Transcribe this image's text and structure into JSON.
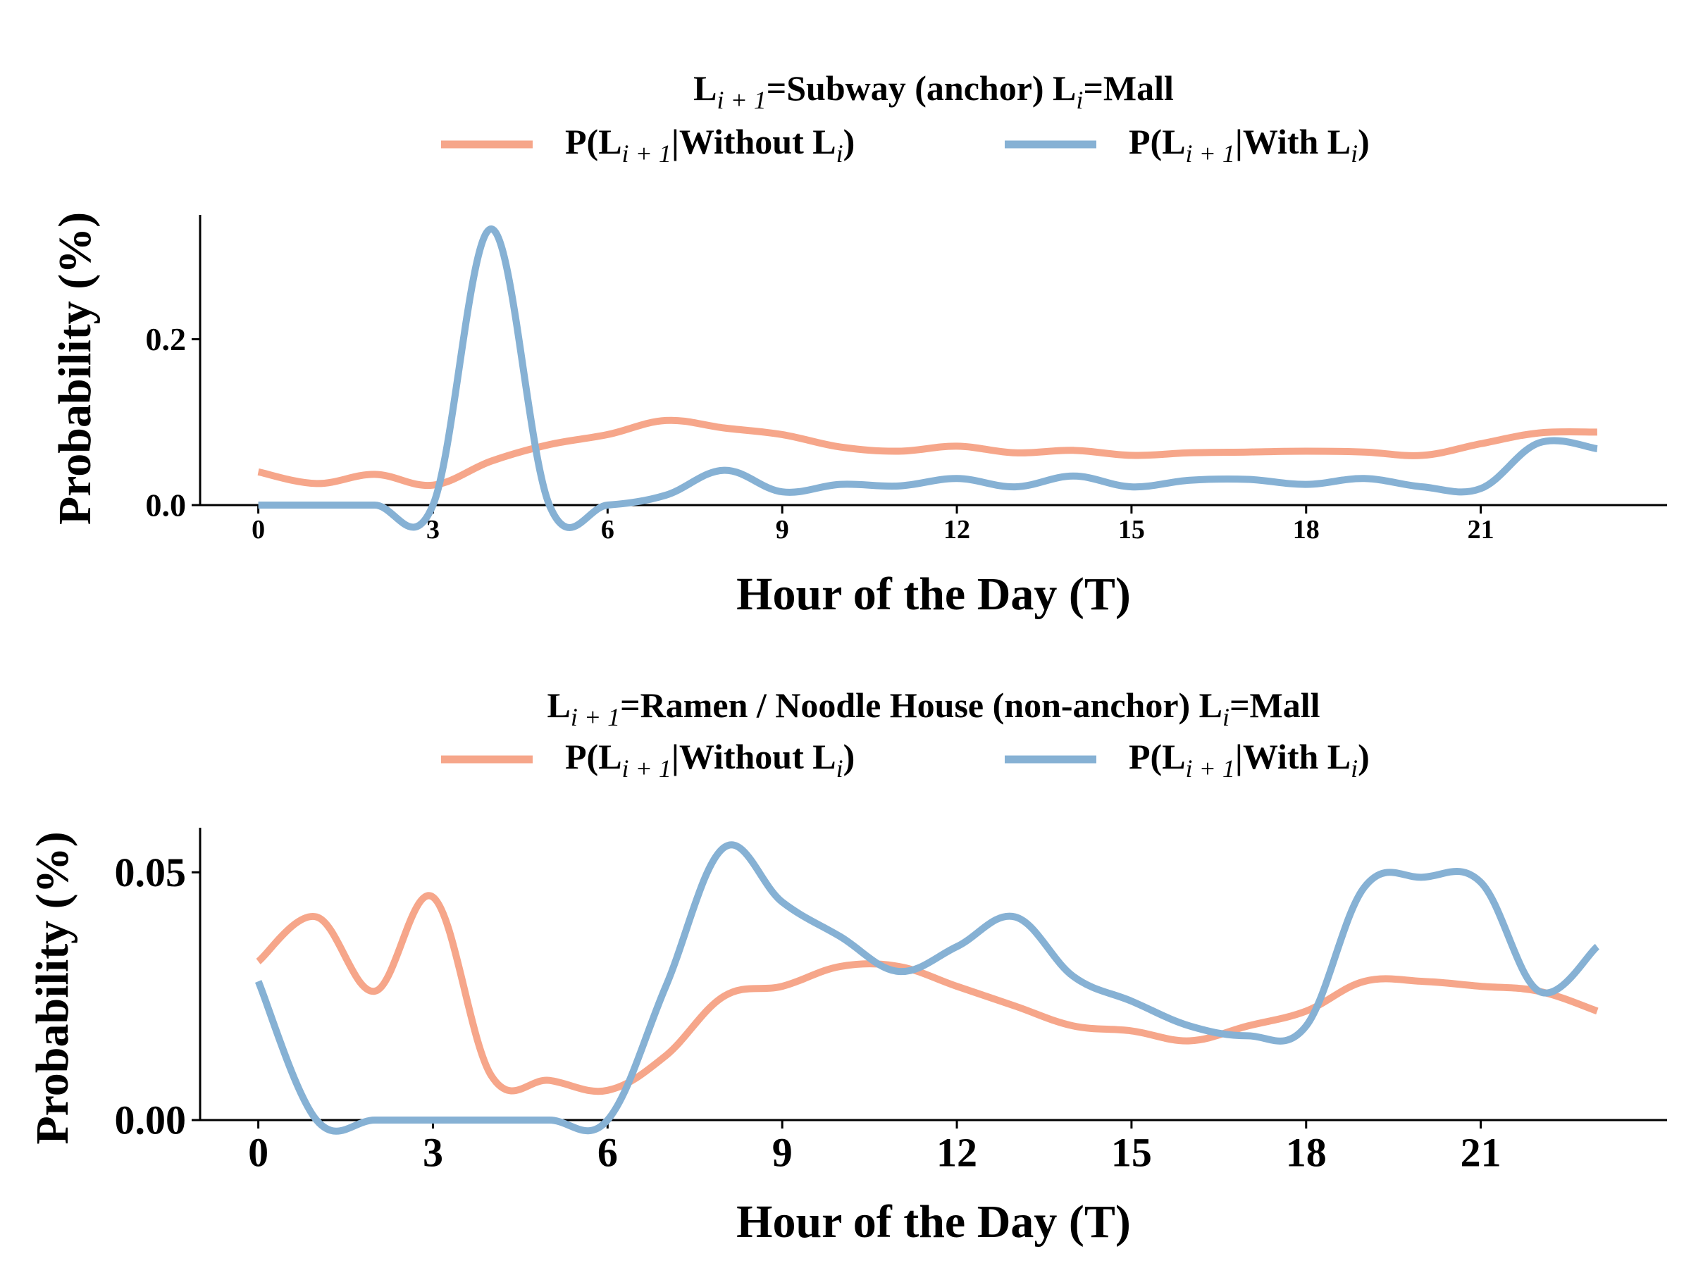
{
  "chart_data": [
    {
      "type": "line",
      "title_parts": {
        "prefix": "L",
        "sub1": "i + 1",
        "mid": "=Subway (anchor)  L",
        "sub2": "i",
        "suffix": "=Mall"
      },
      "xlabel": "Hour of the Day (T)",
      "ylabel": "Probability (%)",
      "xlim": [
        -1,
        24.2
      ],
      "ylim": [
        0,
        0.35
      ],
      "xticks": [
        "0",
        "3",
        "6",
        "9",
        "12",
        "15",
        "18",
        "21"
      ],
      "yticks": [
        "0.0",
        "0.2"
      ],
      "legend": {
        "placement": "top-center",
        "entries": [
          {
            "pre": "P(L",
            "sub1": "i + 1",
            "mid": "|Without L",
            "sub2": "i",
            "post": ")",
            "color": "#f6a68a"
          },
          {
            "pre": "P(L",
            "sub1": "i + 1",
            "mid": "|With L",
            "sub2": "i",
            "post": ")",
            "color": "#86b1d4"
          }
        ]
      },
      "x": [
        0,
        1,
        2,
        3,
        4,
        5,
        6,
        7,
        8,
        9,
        10,
        11,
        12,
        13,
        14,
        15,
        16,
        17,
        18,
        19,
        20,
        21,
        22,
        23
      ],
      "series": [
        {
          "name": "P(Li+1|Without Li)",
          "color": "#f6a68a",
          "values": [
            0.04,
            0.026,
            0.037,
            0.024,
            0.053,
            0.073,
            0.085,
            0.102,
            0.093,
            0.085,
            0.07,
            0.065,
            0.071,
            0.063,
            0.066,
            0.06,
            0.063,
            0.064,
            0.065,
            0.064,
            0.06,
            0.074,
            0.087,
            0.088
          ]
        },
        {
          "name": "P(Li+1|With Li)",
          "color": "#86b1d4",
          "values": [
            0.0,
            0.0,
            0.0,
            0.0,
            0.333,
            0.0,
            0.0,
            0.012,
            0.042,
            0.016,
            0.025,
            0.023,
            0.032,
            0.022,
            0.035,
            0.022,
            0.03,
            0.031,
            0.025,
            0.032,
            0.022,
            0.02,
            0.075,
            0.068
          ]
        }
      ]
    },
    {
      "type": "line",
      "title_parts": {
        "prefix": "L",
        "sub1": "i + 1",
        "mid": "=Ramen /  Noodle House (non-anchor)  L",
        "sub2": "i",
        "suffix": "=Mall"
      },
      "xlabel": "Hour of the Day (T)",
      "ylabel": "Probability (%)",
      "xlim": [
        -1,
        24.2
      ],
      "ylim": [
        0,
        0.059
      ],
      "xticks": [
        "0",
        "3",
        "6",
        "9",
        "12",
        "15",
        "18",
        "21"
      ],
      "yticks": [
        "0.00",
        "0.05"
      ],
      "legend": {
        "placement": "top-center",
        "entries": [
          {
            "pre": "P(L",
            "sub1": "i + 1",
            "mid": "|Without L",
            "sub2": "i",
            "post": ")",
            "color": "#f6a68a"
          },
          {
            "pre": "P(L",
            "sub1": "i + 1",
            "mid": "|With L",
            "sub2": "i",
            "post": ")",
            "color": "#86b1d4"
          }
        ]
      },
      "x": [
        0,
        1,
        2,
        3,
        4,
        5,
        6,
        7,
        8,
        9,
        10,
        11,
        12,
        13,
        14,
        15,
        16,
        17,
        18,
        19,
        20,
        21,
        22,
        23
      ],
      "series": [
        {
          "name": "P(Li+1|Without Li)",
          "color": "#f6a68a",
          "values": [
            0.032,
            0.041,
            0.026,
            0.045,
            0.009,
            0.008,
            0.006,
            0.013,
            0.025,
            0.027,
            0.031,
            0.031,
            0.027,
            0.023,
            0.019,
            0.018,
            0.016,
            0.019,
            0.022,
            0.028,
            0.028,
            0.027,
            0.026,
            0.022
          ]
        },
        {
          "name": "P(Li+1|With Li)",
          "color": "#86b1d4",
          "values": [
            0.028,
            0.0,
            0.0,
            0.0,
            0.0,
            0.0,
            0.0,
            0.027,
            0.055,
            0.044,
            0.037,
            0.03,
            0.035,
            0.041,
            0.029,
            0.024,
            0.019,
            0.017,
            0.019,
            0.047,
            0.049,
            0.048,
            0.026,
            0.035
          ]
        }
      ]
    }
  ]
}
